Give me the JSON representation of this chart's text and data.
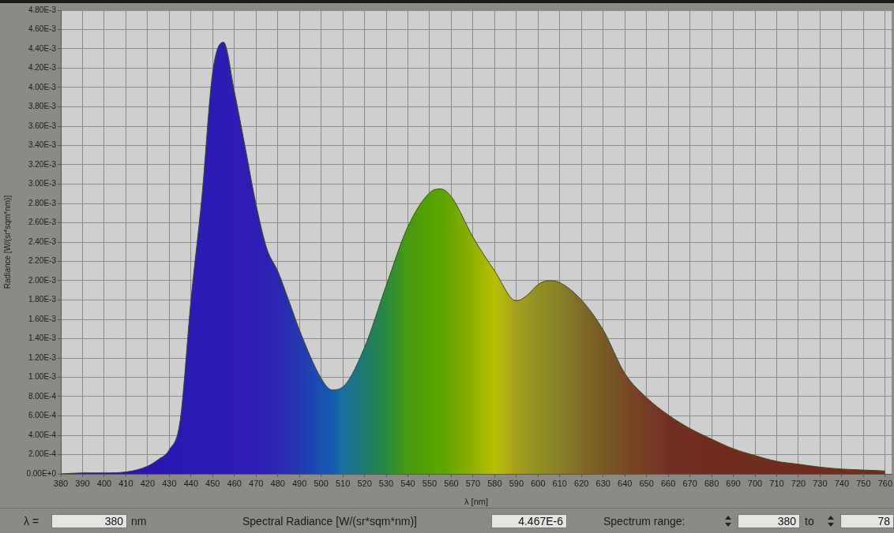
{
  "chart_data": {
    "type": "area",
    "xlabel": "λ [nm]",
    "ylabel": "Radiance [W/(sr*sqm*nm)]",
    "xlim": [
      380,
      763
    ],
    "xticks": [
      380,
      390,
      400,
      410,
      420,
      430,
      440,
      450,
      460,
      470,
      480,
      490,
      500,
      510,
      520,
      530,
      540,
      550,
      560,
      570,
      580,
      590,
      600,
      610,
      620,
      630,
      640,
      650,
      660,
      670,
      680,
      690,
      700,
      710,
      720,
      730,
      740,
      750,
      760
    ],
    "ylim": [
      0,
      0.0048
    ],
    "yticks": [
      {
        "value": 0,
        "label": "0.00E+0"
      },
      {
        "value": 0.0002,
        "label": "2.00E-4"
      },
      {
        "value": 0.0004,
        "label": "4.00E-4"
      },
      {
        "value": 0.0006,
        "label": "6.00E-4"
      },
      {
        "value": 0.0008,
        "label": "8.00E-4"
      },
      {
        "value": 0.001,
        "label": "1.00E-3"
      },
      {
        "value": 0.0012,
        "label": "1.20E-3"
      },
      {
        "value": 0.0014,
        "label": "1.40E-3"
      },
      {
        "value": 0.0016,
        "label": "1.60E-3"
      },
      {
        "value": 0.0018,
        "label": "1.80E-3"
      },
      {
        "value": 0.002,
        "label": "2.00E-3"
      },
      {
        "value": 0.0022,
        "label": "2.20E-3"
      },
      {
        "value": 0.0024,
        "label": "2.40E-3"
      },
      {
        "value": 0.0026,
        "label": "2.60E-3"
      },
      {
        "value": 0.0028,
        "label": "2.80E-3"
      },
      {
        "value": 0.003,
        "label": "3.00E-3"
      },
      {
        "value": 0.0032,
        "label": "3.20E-3"
      },
      {
        "value": 0.0034,
        "label": "3.40E-3"
      },
      {
        "value": 0.0036,
        "label": "3.60E-3"
      },
      {
        "value": 0.0038,
        "label": "3.80E-3"
      },
      {
        "value": 0.004,
        "label": "4.00E-3"
      },
      {
        "value": 0.0042,
        "label": "4.20E-3"
      },
      {
        "value": 0.0044,
        "label": "4.40E-3"
      },
      {
        "value": 0.0046,
        "label": "4.60E-3"
      },
      {
        "value": 0.0048,
        "label": "4.80E-3"
      }
    ],
    "grid": true,
    "legend": false,
    "marker": "none",
    "x": [
      380,
      390,
      400,
      410,
      420,
      425,
      430,
      435,
      440,
      445,
      450,
      455,
      460,
      465,
      470,
      475,
      480,
      485,
      490,
      500,
      505,
      510,
      520,
      530,
      540,
      550,
      555,
      560,
      570,
      580,
      590,
      595,
      600,
      605,
      610,
      620,
      630,
      640,
      650,
      660,
      670,
      680,
      690,
      700,
      710,
      720,
      730,
      740,
      750,
      760
    ],
    "series": [
      {
        "color": "#3a4a1e",
        "values": [
          0,
          1e-05,
          1e-05,
          2e-05,
          8e-05,
          0.00015,
          0.00025,
          0.00055,
          0.0018,
          0.00286,
          0.00416,
          0.00447,
          0.00396,
          0.00338,
          0.00279,
          0.00233,
          0.0021,
          0.0018,
          0.00149,
          0.00099,
          0.00087,
          0.0009,
          0.00131,
          0.00195,
          0.00256,
          0.00291,
          0.00295,
          0.00287,
          0.00245,
          0.0021,
          0.00179,
          0.00185,
          0.00196,
          0.002,
          0.00198,
          0.0018,
          0.00149,
          0.00104,
          0.00079,
          0.00061,
          0.00047,
          0.00036,
          0.00026,
          0.00019,
          0.00013,
          0.0001,
          7e-05,
          5e-05,
          4e-05,
          3e-05
        ],
        "colors": [
          "#2a10b0",
          "#2a10b0",
          "#2a10b0",
          "#2a12b0",
          "#2a14b2",
          "#2a16b2",
          "#2a18b4",
          "#2a1ab4",
          "#2c1cb4",
          "#2c1cb4",
          "#2c1cb4",
          "#2c1cb4",
          "#2e1cb4",
          "#2e1cb4",
          "#2e1eb4",
          "#2c22b2",
          "#2a28b0",
          "#2830b0",
          "#2438b0",
          "#1a50b0",
          "#1458b0",
          "#1a70a0",
          "#1e7a70",
          "#2a8a40",
          "#4a9a10",
          "#55a000",
          "#5aa400",
          "#6aa800",
          "#90b000",
          "#b8c000",
          "#a8a020",
          "#9c9824",
          "#909020",
          "#8c8824",
          "#888028",
          "#806a28",
          "#785a26",
          "#784a24",
          "#743c24",
          "#723024",
          "#723024",
          "#702c1c",
          "#702c1c",
          "#702c1c",
          "#702c1c",
          "#702c1c",
          "#702c1c",
          "#702c1c",
          "#702c1c",
          "#702c1c"
        ]
      }
    ],
    "annotations": [
      "λ =",
      "380",
      "nm",
      "Spectral Radiance [W/(sr*sqm*nm)]",
      "4.467E-6",
      "Spectrum range:",
      "380",
      "to",
      "78"
    ]
  }
}
